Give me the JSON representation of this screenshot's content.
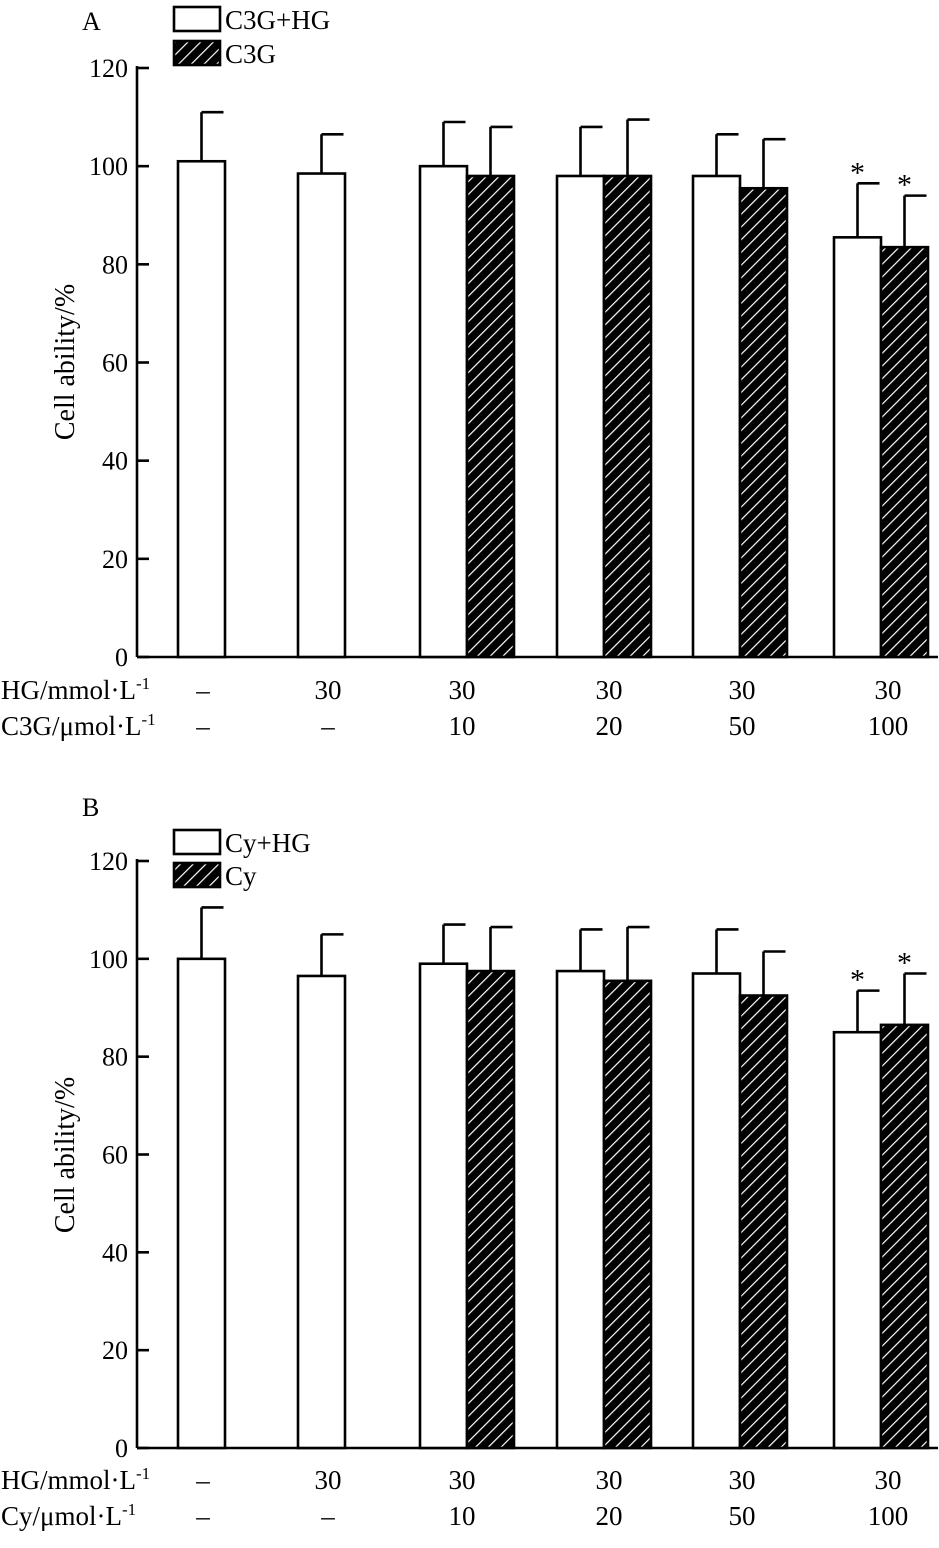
{
  "colors": {
    "ink": "#000000",
    "paper": "#ffffff",
    "hatch": "#000000"
  },
  "chart_data": [
    {
      "type": "bar",
      "panel_label": "A",
      "ylabel": "Cell ability/%",
      "ylim": [
        0,
        120
      ],
      "yticks": [
        "0",
        "20",
        "40",
        "60",
        "80",
        "100",
        "120"
      ],
      "groups": 6,
      "series": [
        {
          "name": "C3G+HG",
          "fill": "open",
          "values": [
            101,
            98.5,
            100,
            98,
            98,
            85.5
          ],
          "errors": [
            10,
            8,
            9,
            10,
            8.5,
            11
          ],
          "significant": [
            false,
            false,
            false,
            false,
            false,
            true
          ],
          "present": [
            true,
            true,
            true,
            true,
            true,
            true
          ]
        },
        {
          "name": "C3G",
          "fill": "hatched",
          "values": [
            null,
            null,
            98,
            98,
            95.5,
            83.5
          ],
          "errors": [
            null,
            null,
            10,
            11.5,
            10,
            10.5
          ],
          "significant": [
            false,
            false,
            false,
            false,
            false,
            true
          ],
          "present": [
            false,
            false,
            true,
            true,
            true,
            true
          ]
        }
      ],
      "rows": [
        {
          "label": "HG/mmol·L",
          "sup": "-1",
          "values": [
            "–",
            "30",
            "30",
            "30",
            "30",
            "30"
          ]
        },
        {
          "label": "C3G/μmol·L",
          "sup": "-1",
          "values": [
            "–",
            "–",
            "10",
            "20",
            "50",
            "100"
          ]
        }
      ],
      "significance_mark": "*"
    },
    {
      "type": "bar",
      "panel_label": "B",
      "ylabel": "Cell ability/%",
      "ylim": [
        0,
        120
      ],
      "yticks": [
        "0",
        "20",
        "40",
        "60",
        "80",
        "100",
        "120"
      ],
      "groups": 6,
      "series": [
        {
          "name": "Cy+HG",
          "fill": "open",
          "values": [
            100,
            96.5,
            99,
            97.5,
            97,
            85
          ],
          "errors": [
            10.5,
            8.5,
            8,
            8.5,
            9,
            8.5
          ],
          "significant": [
            false,
            false,
            false,
            false,
            false,
            true
          ],
          "present": [
            true,
            true,
            true,
            true,
            true,
            true
          ]
        },
        {
          "name": "Cy",
          "fill": "hatched",
          "values": [
            null,
            null,
            97.5,
            95.5,
            92.5,
            86.5
          ],
          "errors": [
            null,
            null,
            9,
            11,
            9,
            10.5
          ],
          "significant": [
            false,
            false,
            false,
            false,
            false,
            true
          ],
          "present": [
            false,
            false,
            true,
            true,
            true,
            true
          ]
        }
      ],
      "rows": [
        {
          "label": "HG/mmol·L",
          "sup": "-1",
          "values": [
            "–",
            "30",
            "30",
            "30",
            "30",
            "30"
          ]
        },
        {
          "label": "Cy/μmol·L",
          "sup": "-1",
          "values": [
            "–",
            "–",
            "10",
            "20",
            "50",
            "100"
          ]
        }
      ],
      "significance_mark": "*"
    }
  ]
}
